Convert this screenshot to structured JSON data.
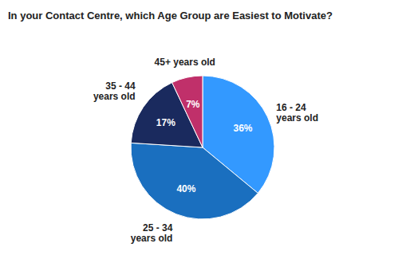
{
  "chart_data": {
    "type": "pie",
    "title": "In your Contact Centre, which Age Group are Easiest to Motivate?",
    "categories": [
      "16 - 24\nyears old",
      "25 - 34\nyears old",
      "35 - 44\nyears old",
      "45+ years old"
    ],
    "values": [
      36,
      40,
      17,
      7
    ],
    "value_labels": [
      "36%",
      "40%",
      "17%",
      "7%"
    ],
    "colors": [
      "#3399FF",
      "#1A6FBF",
      "#1A2A5E",
      "#C0306A"
    ],
    "data_labels": true
  }
}
